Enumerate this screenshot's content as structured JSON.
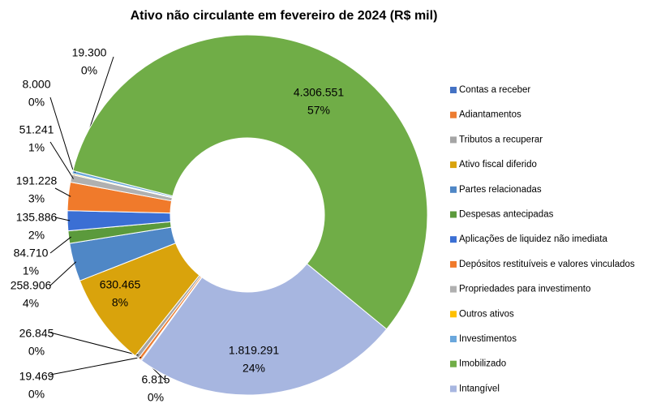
{
  "chart_data": {
    "type": "donut",
    "title": "Ativo não circulante em fevereiro de 2024 (R$ mil)",
    "categories": [
      "Contas a receber",
      "Adiantamentos",
      "Tributos a recuperar",
      "Ativo fiscal diferido",
      "Partes relacionadas",
      "Despesas antecipadas",
      "Aplicações de liquidez não imediata",
      "Depósitos restituíveis e valores vinculados",
      "Propriedades para investimento",
      "Outros ativos",
      "Investimentos",
      "Imobilizado",
      "Intangível"
    ],
    "values": [
      6815,
      19469,
      26845,
      630465,
      258906,
      84710,
      135886,
      191228,
      51241,
      8000,
      19300,
      4306551,
      1819291
    ],
    "value_labels": [
      "6.815",
      "19.469",
      "26.845",
      "630.465",
      "258.906",
      "84.710",
      "135.886",
      "191.228",
      "51.241",
      "8.000",
      "19.300",
      "4.306.551",
      "1.819.291"
    ],
    "percent_labels": [
      "0%",
      "0%",
      "0%",
      "8%",
      "4%",
      "1%",
      "2%",
      "3%",
      "1%",
      "0%",
      "0%",
      "57%",
      "24%"
    ],
    "colors": [
      "#4472c4",
      "#ed7d31",
      "#a5a5a5",
      "#d9a30c",
      "#4f87c6",
      "#5b9a3c",
      "#3b6fd4",
      "#f07a2b",
      "#b0b0b0",
      "#ffc000",
      "#6aa7dc",
      "#70ad47",
      "#a7b6e0"
    ],
    "legend": "right"
  }
}
